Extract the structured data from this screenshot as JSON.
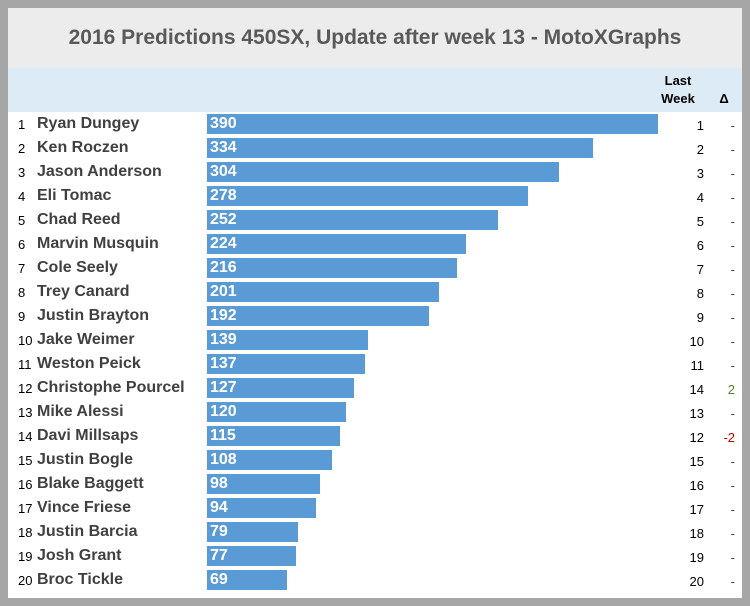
{
  "chart_data": {
    "type": "bar",
    "title": "2016 Predictions 450SX, Update after week 13 - MotoXGraphs",
    "columns": {
      "last_week": "Last Week",
      "delta": "Δ"
    },
    "color": "#5b9bd5",
    "ranks": [
      1,
      2,
      3,
      4,
      5,
      6,
      7,
      8,
      9,
      10,
      11,
      12,
      13,
      14,
      15,
      16,
      17,
      18,
      19,
      20
    ],
    "categories": [
      "Ryan Dungey",
      "Ken Roczen",
      "Jason Anderson",
      "Eli Tomac",
      "Chad Reed",
      "Marvin Musquin",
      "Cole Seely",
      "Trey Canard",
      "Justin Brayton",
      "Jake Weimer",
      "Weston Peick",
      "Christophe Pourcel",
      "Mike Alessi",
      "Davi Millsaps",
      "Justin Bogle",
      "Blake Baggett",
      "Vince Friese",
      "Justin Barcia",
      "Josh Grant",
      "Broc Tickle"
    ],
    "values": [
      390,
      334,
      304,
      278,
      252,
      224,
      216,
      201,
      192,
      139,
      137,
      127,
      120,
      115,
      108,
      98,
      94,
      79,
      77,
      69
    ],
    "last_week": [
      1,
      2,
      3,
      4,
      5,
      6,
      7,
      8,
      9,
      10,
      11,
      14,
      13,
      12,
      15,
      16,
      17,
      18,
      19,
      20
    ],
    "delta": [
      "-",
      "-",
      "-",
      "-",
      "-",
      "-",
      "-",
      "-",
      "-",
      "-",
      "-",
      "2",
      "-",
      "-2",
      "-",
      "-",
      "-",
      "-",
      "-",
      "-"
    ]
  }
}
